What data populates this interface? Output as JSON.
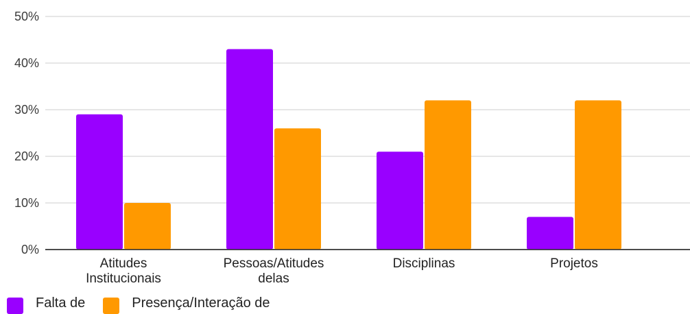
{
  "chart_data": {
    "type": "bar",
    "categories": [
      [
        "Atitudes",
        "Institucionais"
      ],
      [
        "Pessoas/Atitudes",
        "delas"
      ],
      [
        "Disciplinas"
      ],
      [
        "Projetos"
      ]
    ],
    "series": [
      {
        "name": "Falta de",
        "color": "#9900ff",
        "values": [
          29,
          43,
          21,
          7
        ]
      },
      {
        "name": "Presença/Interação de",
        "color": "#ff9900",
        "values": [
          10,
          26,
          32,
          32
        ]
      }
    ],
    "ylim": [
      0,
      50
    ],
    "yticks": [
      "0%",
      "10%",
      "20%",
      "30%",
      "40%",
      "50%"
    ],
    "grid": true,
    "legend_position": "bottom-left"
  }
}
